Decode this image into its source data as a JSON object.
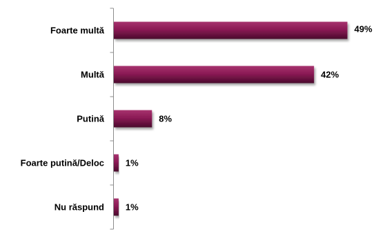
{
  "chart_data": {
    "type": "bar",
    "orientation": "horizontal",
    "categories": [
      "Foarte multă",
      "Multă",
      "Putină",
      "Foarte putină/Deloc",
      "Nu răspund"
    ],
    "values": [
      49,
      42,
      8,
      1,
      1
    ],
    "value_labels": [
      "49%",
      "42%",
      "8%",
      "1%",
      "1%"
    ],
    "unit": "%",
    "xlim": [
      0,
      55
    ],
    "grid": false,
    "legend": "none",
    "bar_color": "#8b1a55",
    "bar_color_dark": "#4a0a2c",
    "bar_color_light": "#a7336e"
  }
}
